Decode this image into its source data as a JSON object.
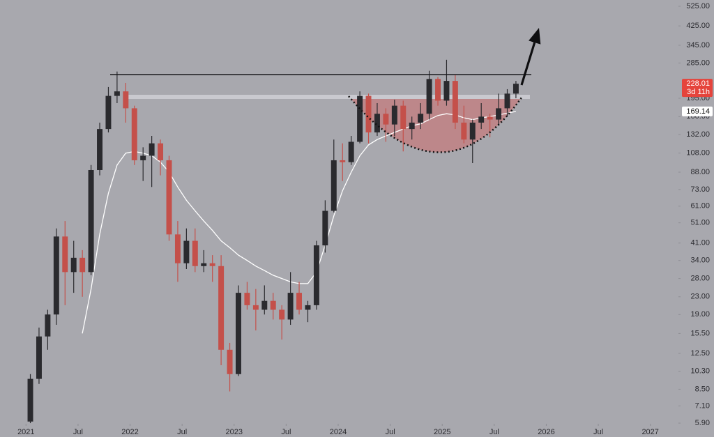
{
  "chart_data": {
    "type": "candlestick",
    "log_scale": true,
    "x": [
      "2021-01",
      "2021-02",
      "2021-03",
      "2021-04",
      "2021-05",
      "2021-06",
      "2021-07",
      "2021-08",
      "2021-09",
      "2021-10",
      "2021-11",
      "2021-12",
      "2022-01",
      "2022-02",
      "2022-03",
      "2022-04",
      "2022-05",
      "2022-06",
      "2022-07",
      "2022-08",
      "2022-09",
      "2022-10",
      "2022-11",
      "2022-12",
      "2023-01",
      "2023-02",
      "2023-03",
      "2023-04",
      "2023-05",
      "2023-06",
      "2023-07",
      "2023-08",
      "2023-09",
      "2023-10",
      "2023-11",
      "2023-12",
      "2024-01",
      "2024-02",
      "2024-03",
      "2024-04",
      "2024-05",
      "2024-06",
      "2024-07",
      "2024-08",
      "2024-09",
      "2024-10",
      "2024-11",
      "2024-12",
      "2025-01",
      "2025-02",
      "2025-03",
      "2025-04",
      "2025-05",
      "2025-06",
      "2025-07",
      "2025-08",
      "2025-09"
    ],
    "candles": {
      "open": [
        6.0,
        9.5,
        15,
        19,
        44,
        30,
        35,
        30,
        90,
        140,
        200,
        210,
        175,
        100,
        105,
        120,
        100,
        45,
        33,
        42,
        32,
        33,
        32,
        13,
        10,
        24,
        21,
        20,
        22,
        20,
        18,
        24,
        20,
        21,
        40,
        58,
        100,
        98,
        122,
        200,
        135,
        165,
        147,
        180,
        140,
        150,
        165,
        240,
        190,
        235,
        150,
        125,
        150,
        160,
        155,
        175,
        205
      ],
      "high": [
        10,
        16.5,
        20,
        48,
        52,
        42,
        38,
        95,
        150,
        220,
        260,
        230,
        180,
        115,
        130,
        125,
        105,
        52,
        48,
        48,
        38,
        36,
        36,
        14,
        26,
        27,
        25,
        26,
        24,
        21,
        30,
        27,
        22,
        42,
        65,
        125,
        120,
        130,
        210,
        205,
        185,
        175,
        192,
        190,
        160,
        185,
        262,
        245,
        295,
        250,
        180,
        155,
        185,
        165,
        205,
        215,
        235
      ],
      "low": [
        5.9,
        9.0,
        13,
        17,
        21,
        24,
        23,
        29,
        85,
        135,
        185,
        150,
        95,
        80,
        75,
        85,
        42,
        27,
        31,
        30,
        30,
        27,
        11,
        8.3,
        9.8,
        20,
        16,
        19,
        18,
        14.5,
        17,
        19,
        17.5,
        20,
        37,
        57,
        80,
        95,
        120,
        120,
        130,
        122,
        130,
        110,
        125,
        140,
        155,
        180,
        180,
        140,
        120,
        97,
        140,
        128,
        145,
        160,
        195
      ],
      "close": [
        9.5,
        15,
        19,
        44,
        30,
        35,
        30,
        90,
        140,
        200,
        210,
        175,
        100,
        105,
        120,
        100,
        45,
        33,
        42,
        32,
        33,
        32,
        13,
        10,
        24,
        21,
        20,
        22,
        20,
        18,
        24,
        20,
        21,
        40,
        58,
        100,
        98,
        122,
        200,
        135,
        165,
        147,
        180,
        140,
        150,
        165,
        240,
        190,
        235,
        150,
        125,
        150,
        160,
        155,
        175,
        205,
        228.01
      ]
    },
    "up_color": "#2a2a2e",
    "down_color": "#c4504a",
    "ma": {
      "color": "#ffffff",
      "values": [
        null,
        null,
        null,
        null,
        null,
        null,
        15.5,
        25,
        45,
        70,
        95,
        108,
        110,
        108,
        105,
        98,
        88,
        75,
        65,
        58,
        52,
        47,
        42,
        39,
        36,
        34,
        32,
        30.5,
        29,
        28,
        27,
        26.5,
        26.5,
        30,
        40,
        55,
        72,
        88,
        105,
        118,
        125,
        130,
        135,
        140,
        145,
        148,
        155,
        162,
        165,
        163,
        158,
        155,
        158,
        160,
        163,
        166,
        169.14
      ]
    },
    "xlim": [
      "2020-10",
      "2027-04"
    ],
    "xticks": [
      {
        "value": "2021-01",
        "label": "2021"
      },
      {
        "value": "2021-07",
        "label": "Jul"
      },
      {
        "value": "2022-01",
        "label": "2022"
      },
      {
        "value": "2022-07",
        "label": "Jul"
      },
      {
        "value": "2023-01",
        "label": "2023"
      },
      {
        "value": "2023-07",
        "label": "Jul"
      },
      {
        "value": "2024-01",
        "label": "2024"
      },
      {
        "value": "2024-07",
        "label": "Jul"
      },
      {
        "value": "2025-01",
        "label": "2025"
      },
      {
        "value": "2025-07",
        "label": "Jul"
      },
      {
        "value": "2026-01",
        "label": "2026"
      },
      {
        "value": "2026-07",
        "label": "Jul"
      },
      {
        "value": "2027-01",
        "label": "2027"
      }
    ],
    "ylim": [
      5.08,
      561.7
    ],
    "yticks": [
      {
        "value": 525,
        "label": "525.00"
      },
      {
        "value": 425,
        "label": "425.00"
      },
      {
        "value": 345,
        "label": "345.00"
      },
      {
        "value": 285,
        "label": "285.00"
      },
      {
        "value": 195,
        "label": "195.00"
      },
      {
        "value": 160,
        "label": "160.00"
      },
      {
        "value": 132,
        "label": "132.00"
      },
      {
        "value": 108,
        "label": "108.00"
      },
      {
        "value": 88,
        "label": "88.00"
      },
      {
        "value": 73,
        "label": "73.00"
      },
      {
        "value": 61,
        "label": "61.00"
      },
      {
        "value": 51,
        "label": "51.00"
      },
      {
        "value": 41,
        "label": "41.00"
      },
      {
        "value": 34,
        "label": "34.00"
      },
      {
        "value": 28,
        "label": "28.00"
      },
      {
        "value": 23,
        "label": "23.00"
      },
      {
        "value": 19,
        "label": "19.00"
      },
      {
        "value": 15.5,
        "label": "15.50"
      },
      {
        "value": 12.5,
        "label": "12.50"
      },
      {
        "value": 10.3,
        "label": "10.30"
      },
      {
        "value": 8.5,
        "label": "8.50"
      },
      {
        "value": 7.1,
        "label": "7.10"
      },
      {
        "value": 5.9,
        "label": "5.90"
      }
    ],
    "price_tags": [
      {
        "value": 228.01,
        "label": "228.01",
        "sub": "3d 11h",
        "color": "#e5443c",
        "text_color": "#ffffff"
      },
      {
        "value": 169.14,
        "label": "169.14",
        "color": "#ffffff",
        "text_color": "#111111"
      }
    ]
  }
}
